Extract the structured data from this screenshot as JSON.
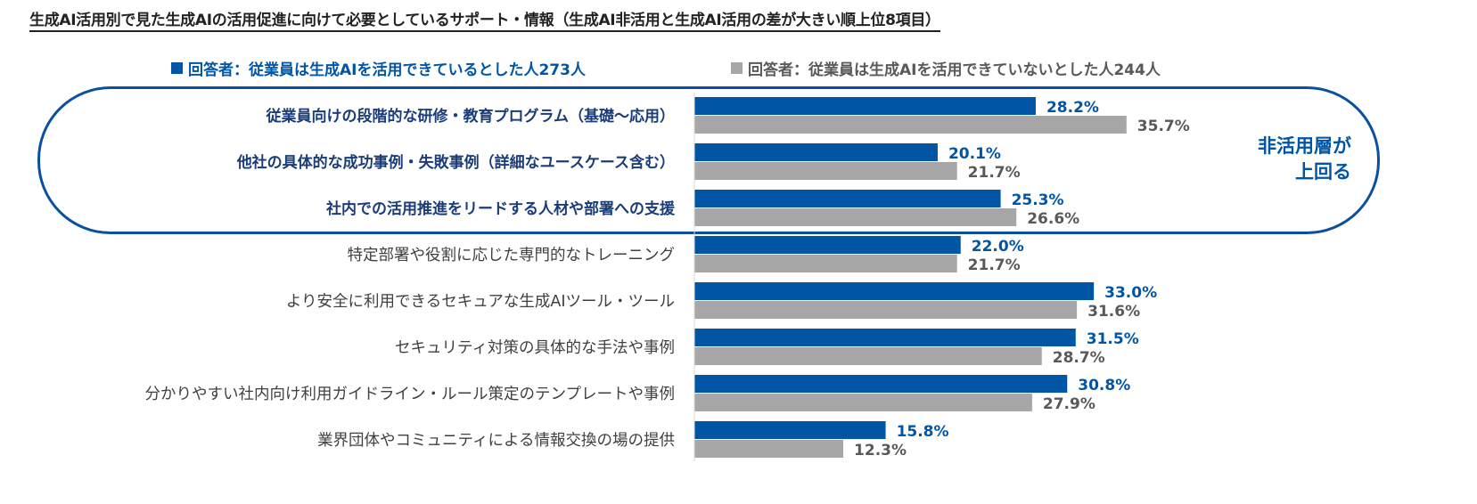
{
  "chart_data": {
    "type": "bar",
    "orientation": "horizontal",
    "title": "生成AI活用別で見た生成AIの活用促進に向けて必要としているサポート・情報（生成AI非活用と生成AI活用の差が大きい順上位8項目）",
    "categories": [
      "従業員向けの段階的な研修・教育プログラム（基礎〜応用）",
      "他社の具体的な成功事例・失敗事例（詳細なユースケース含む）",
      "社内での活用推進をリードする人材や部署への支援",
      "特定部署や役割に応じた専門的なトレーニング",
      "より安全に利用できるセキュアな生成AIツール・ツール",
      "セキュリティ対策の具体的な手法や事例",
      "分かりやすい社内向け利用ガイドライン・ルール策定のテンプレートや事例",
      "業界団体やコミュニティによる情報交換の場の提供"
    ],
    "highlighted_count": 3,
    "series": [
      {
        "name": "■回答者：従業員は生成AIを活用できているとした人273人",
        "legend": "回答者：従業員は生成AIを活用できているとした人273人",
        "color": "#0055a5",
        "values": [
          28.2,
          20.1,
          25.3,
          22.0,
          33.0,
          31.5,
          30.8,
          15.8
        ]
      },
      {
        "name": "■回答者：従業員は生成AIを活用できていないとした人244人",
        "legend": "回答者：従業員は生成AIを活用できていないとした人244人",
        "color": "#a6a6a6",
        "values": [
          35.7,
          21.7,
          26.6,
          21.7,
          31.6,
          28.7,
          27.9,
          12.3
        ]
      }
    ],
    "annotation": [
      "非活用層が",
      "上回る"
    ],
    "xlim": [
      0,
      40
    ],
    "xlabel": "",
    "ylabel": "",
    "grid": false,
    "legend_position": "top"
  }
}
